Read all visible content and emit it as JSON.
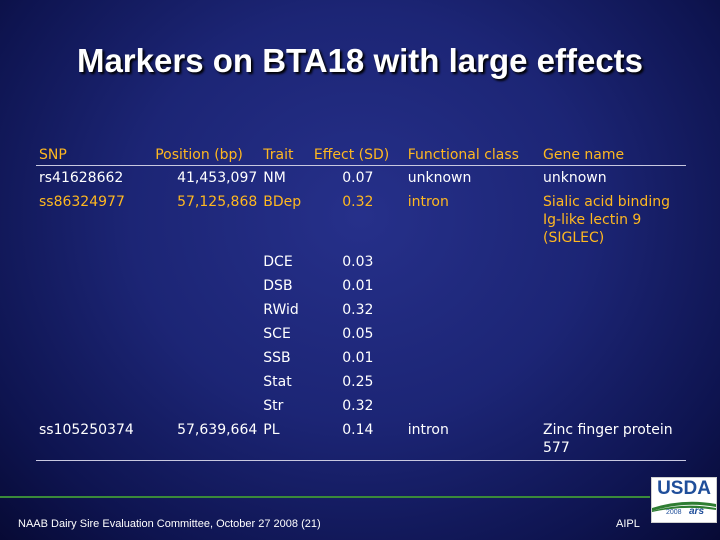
{
  "title": "Markers on BTA18 with large effects",
  "table": {
    "headers": [
      "SNP",
      "Position (bp)",
      "Trait",
      "Effect (SD)",
      "Functional class",
      "Gene name"
    ],
    "rows": [
      {
        "snp": "rs41628662",
        "position": "41,453,097",
        "trait": "NM",
        "effect": "0.07",
        "class": "unknown",
        "gene": "unknown"
      },
      {
        "snp": "ss86324977",
        "position": "57,125,868",
        "trait": "BDep",
        "effect": "0.32",
        "class": "intron",
        "gene": "Sialic acid binding Ig-like lectin 9 (SIGLEC)"
      },
      {
        "snp": "",
        "position": "",
        "trait": "DCE",
        "effect": "0.03",
        "class": "",
        "gene": ""
      },
      {
        "snp": "",
        "position": "",
        "trait": "DSB",
        "effect": "0.01",
        "class": "",
        "gene": ""
      },
      {
        "snp": "",
        "position": "",
        "trait": "RWid",
        "effect": "0.32",
        "class": "",
        "gene": ""
      },
      {
        "snp": "",
        "position": "",
        "trait": "SCE",
        "effect": "0.05",
        "class": "",
        "gene": ""
      },
      {
        "snp": "",
        "position": "",
        "trait": "SSB",
        "effect": "0.01",
        "class": "",
        "gene": ""
      },
      {
        "snp": "",
        "position": "",
        "trait": "Stat",
        "effect": "0.25",
        "class": "",
        "gene": ""
      },
      {
        "snp": "",
        "position": "",
        "trait": "Str",
        "effect": "0.32",
        "class": "",
        "gene": ""
      },
      {
        "snp": "ss105250374",
        "position": "57,639,664",
        "trait": "PL",
        "effect": "0.14",
        "class": "intron",
        "gene": "Zinc finger protein 577"
      }
    ]
  },
  "footer": {
    "left": "NAAB Dairy Sire Evaluation Committee, October 27 2008 (21)",
    "right": "AIPL"
  },
  "logo": {
    "name": "usda-ars-logo",
    "text": "USDA",
    "year": "2008",
    "ars": "ars"
  },
  "colors": {
    "header_text": "#ffb820",
    "highlight_text": "#ffb820",
    "body_text": "#ffffff",
    "background": "#1c2575"
  }
}
